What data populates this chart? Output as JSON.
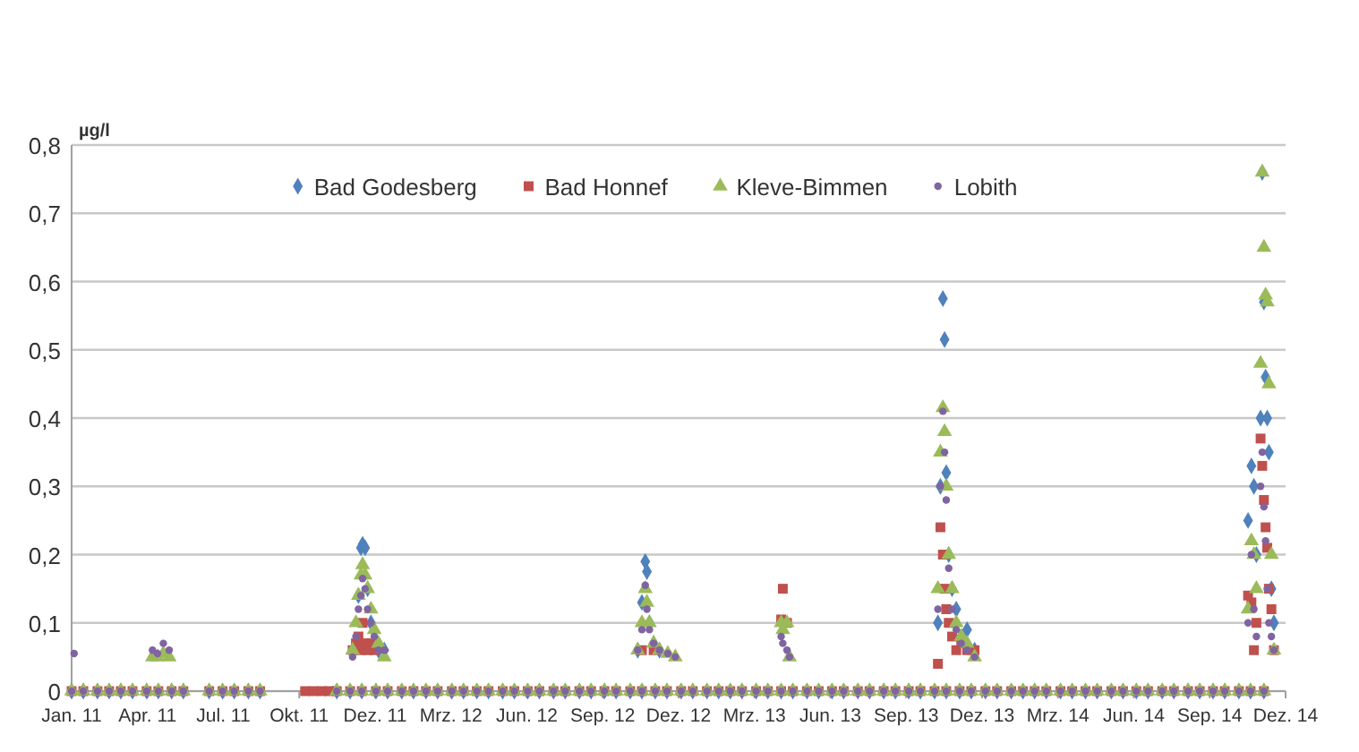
{
  "chart_data": {
    "type": "scatter",
    "ylabel": "µg/l",
    "legend": "top",
    "grid": "y",
    "xlim": [
      "2011-01-01",
      "2014-12-27"
    ],
    "xticks": [
      {
        "value": "2011-01-01",
        "label": "Jan. 11"
      },
      {
        "value": "2011-04-02",
        "label": "Apr. 11"
      },
      {
        "value": "2011-07-02",
        "label": "Jul. 11"
      },
      {
        "value": "2011-10-01",
        "label": "Okt. 11"
      },
      {
        "value": "2011-12-31",
        "label": "Dez. 11"
      },
      {
        "value": "2012-03-31",
        "label": "Mrz. 12"
      },
      {
        "value": "2012-06-30",
        "label": "Jun. 12"
      },
      {
        "value": "2012-09-29",
        "label": "Sep. 12"
      },
      {
        "value": "2012-12-29",
        "label": "Dez. 12"
      },
      {
        "value": "2013-03-30",
        "label": "Mrz. 13"
      },
      {
        "value": "2013-06-29",
        "label": "Jun. 13"
      },
      {
        "value": "2013-09-28",
        "label": "Sep. 13"
      },
      {
        "value": "2013-12-28",
        "label": "Dez. 13"
      },
      {
        "value": "2014-03-29",
        "label": "Mrz. 14"
      },
      {
        "value": "2014-06-28",
        "label": "Jun. 14"
      },
      {
        "value": "2014-09-27",
        "label": "Sep. 14"
      },
      {
        "value": "2014-12-27",
        "label": "Dez. 14"
      }
    ],
    "ylim": [
      0,
      0.8
    ],
    "yticks": [
      0,
      {
        "value": 0.1,
        "label": "0,1"
      },
      {
        "value": 0.2,
        "label": "0,2"
      },
      {
        "value": 0.3,
        "label": "0,3"
      },
      {
        "value": 0.4,
        "label": "0,4"
      },
      {
        "value": 0.5,
        "label": "0,5"
      },
      {
        "value": 0.6,
        "label": "0,6"
      },
      {
        "value": 0.7,
        "label": "0,7"
      },
      {
        "value": 0.8,
        "label": "0,8"
      }
    ],
    "x": [
      "2011-01-01",
      "2011-01-15",
      "2011-02-01",
      "2011-02-15",
      "2011-03-01",
      "2011-03-15",
      "2011-04-01",
      "2011-04-15",
      "2011-05-01",
      "2011-05-15",
      "2011-06-15",
      "2011-07-01",
      "2011-07-15",
      "2011-08-01",
      "2011-08-15",
      "2011-10-08",
      "2011-10-18",
      "2011-10-28",
      "2011-11-06",
      "2011-11-15",
      "2011-12-01",
      "2011-12-15",
      "2012-01-01",
      "2012-01-15",
      "2012-02-01",
      "2012-02-15",
      "2012-03-01",
      "2012-03-15",
      "2012-04-01",
      "2012-04-15",
      "2012-05-01",
      "2012-05-15",
      "2012-06-01",
      "2012-06-15",
      "2012-07-01",
      "2012-07-15",
      "2012-08-01",
      "2012-08-15",
      "2012-09-01",
      "2012-09-15",
      "2012-10-01",
      "2012-10-15",
      "2012-11-01",
      "2012-11-15",
      "2012-12-01",
      "2012-12-15",
      "2013-01-01",
      "2013-01-15",
      "2013-02-01",
      "2013-02-15",
      "2013-03-01",
      "2013-03-15",
      "2013-04-01",
      "2013-04-15",
      "2013-05-01",
      "2013-05-15",
      "2013-06-01",
      "2013-06-15",
      "2013-07-01",
      "2013-07-15",
      "2013-08-01",
      "2013-08-15",
      "2013-09-01",
      "2013-09-15",
      "2013-10-01",
      "2013-10-15",
      "2013-11-01",
      "2013-11-15",
      "2013-12-01",
      "2013-12-15",
      "2014-01-01",
      "2014-01-15",
      "2014-02-01",
      "2014-02-15",
      "2014-03-01",
      "2014-03-15",
      "2014-04-01",
      "2014-04-15",
      "2014-05-01",
      "2014-05-15",
      "2014-06-01",
      "2014-06-15",
      "2014-07-01",
      "2014-07-15",
      "2014-08-01",
      "2014-08-15",
      "2014-09-01",
      "2014-09-15",
      "2014-10-01",
      "2014-10-15",
      "2014-11-01",
      "2014-11-15",
      "2014-12-01",
      "2011-01-04",
      "2011-04-08",
      "2011-04-14",
      "2011-04-21",
      "2011-04-28",
      "2011-12-04",
      "2011-12-08",
      "2011-12-11",
      "2011-12-14",
      "2011-12-16",
      "2011-12-19",
      "2011-12-22",
      "2011-12-26",
      "2011-12-30",
      "2012-01-04",
      "2012-01-11",
      "2012-11-10",
      "2012-11-15",
      "2012-11-19",
      "2012-11-21",
      "2012-11-24",
      "2012-11-29",
      "2012-12-06",
      "2012-12-16",
      "2012-12-25",
      "2013-05-01",
      "2013-05-03",
      "2013-05-08",
      "2013-05-11",
      "2013-11-05",
      "2013-11-08",
      "2013-11-11",
      "2013-11-13",
      "2013-11-15",
      "2013-11-18",
      "2013-11-22",
      "2013-11-27",
      "2013-12-03",
      "2013-12-10",
      "2013-12-19",
      "2014-11-12",
      "2014-11-16",
      "2014-11-19",
      "2014-11-22",
      "2014-11-27",
      "2014-11-29",
      "2014-12-01",
      "2014-12-03",
      "2014-12-05",
      "2014-12-07",
      "2014-12-10",
      "2014-12-13"
    ],
    "series": [
      {
        "name": "Bad Godesberg",
        "color": "#4f81bd",
        "marker": "diamond",
        "values": [
          0,
          0,
          0,
          0,
          0,
          0,
          0,
          0,
          0,
          0,
          0,
          0,
          0,
          0,
          0,
          null,
          null,
          null,
          null,
          0,
          0,
          0,
          0,
          0,
          0,
          0,
          0,
          0,
          0,
          0,
          0,
          0,
          0,
          0,
          0,
          0,
          0,
          0,
          0,
          0,
          0,
          0,
          0,
          0,
          0,
          0,
          0,
          0,
          0,
          0,
          0,
          0,
          0,
          0,
          0,
          0,
          0,
          0,
          0,
          0,
          0,
          0,
          0,
          0,
          0,
          0,
          0,
          0,
          0,
          0,
          0,
          0,
          0,
          0,
          0,
          0,
          0,
          0,
          0,
          0,
          0,
          0,
          0,
          0,
          0,
          0,
          0,
          0,
          0,
          0,
          0,
          0,
          0,
          null,
          null,
          null,
          null,
          null,
          null,
          null,
          0.14,
          0.21,
          0.215,
          0.21,
          0.15,
          0.1,
          null,
          0.06,
          0.06,
          0.06,
          0.13,
          0.19,
          0.175,
          0.1,
          0.07,
          0.06,
          null,
          null,
          null,
          null,
          null,
          null,
          0.1,
          0.3,
          0.575,
          0.515,
          0.32,
          0.2,
          0.15,
          0.12,
          0.08,
          0.09,
          0.06,
          0.25,
          0.33,
          0.3,
          0.2,
          0.4,
          0.76,
          0.57,
          0.46,
          0.4,
          0.35,
          0.15,
          0.1
        ]
      },
      {
        "name": "Bad Honnef",
        "color": "#c0504d",
        "marker": "square",
        "values": [
          0,
          0,
          0,
          0,
          0,
          0,
          0,
          0,
          0,
          0,
          0,
          0,
          0,
          0,
          0,
          0,
          0,
          0,
          0,
          0,
          0,
          0,
          0,
          0,
          0,
          0,
          0,
          0,
          0,
          0,
          0,
          0,
          0,
          0,
          0,
          0,
          0,
          0,
          0,
          0,
          0,
          0,
          0,
          0,
          0,
          0,
          0,
          0,
          0,
          0,
          0,
          0,
          0,
          0,
          0,
          0,
          0,
          0,
          0,
          0,
          0,
          0,
          0,
          0,
          0,
          0,
          0,
          0,
          0,
          0,
          0,
          0,
          0,
          0,
          0,
          0,
          0,
          0,
          0,
          0,
          0,
          0,
          0,
          0,
          0,
          0,
          0,
          0,
          0,
          0,
          0,
          0,
          0,
          null,
          null,
          null,
          null,
          null,
          0.06,
          0.07,
          0.08,
          0.06,
          0.1,
          0.07,
          0.06,
          0.07,
          0.06,
          null,
          null,
          null,
          0.06,
          null,
          null,
          null,
          0.06,
          null,
          null,
          null,
          0.105,
          0.15,
          0.1,
          null,
          0.04,
          0.24,
          0.2,
          0.15,
          0.12,
          0.1,
          0.08,
          0.06,
          0.07,
          0.06,
          0.06,
          0.14,
          0.13,
          0.06,
          0.1,
          0.37,
          0.33,
          0.28,
          0.24,
          0.21,
          0.15,
          0.12,
          0.06
        ]
      },
      {
        "name": "Kleve-Bimmen",
        "color": "#9bbb59",
        "marker": "triangle",
        "values": [
          0,
          0,
          0,
          0,
          0,
          0,
          0,
          0,
          0,
          0,
          0,
          0,
          0,
          0,
          0,
          null,
          null,
          null,
          null,
          0,
          0,
          0,
          0,
          0,
          0,
          0,
          0,
          0,
          0,
          0,
          0,
          0,
          0,
          0,
          0,
          0,
          0,
          0,
          0,
          0,
          0,
          0,
          0,
          0,
          0,
          0,
          0,
          0,
          0,
          0,
          0,
          0,
          0,
          0,
          0,
          0,
          0,
          0,
          0,
          0,
          0,
          0,
          0,
          0,
          0,
          0,
          0,
          0,
          0,
          0,
          0,
          0,
          0,
          0,
          0,
          0,
          0,
          0,
          0,
          0,
          0,
          0,
          0,
          0,
          0,
          0,
          0,
          0,
          0,
          0,
          0,
          0,
          0,
          null,
          0.05,
          0.05,
          0.055,
          0.05,
          0.06,
          0.1,
          0.14,
          0.17,
          0.185,
          0.17,
          0.15,
          0.12,
          0.09,
          0.07,
          0.05,
          0.06,
          0.1,
          0.15,
          0.13,
          0.1,
          0.07,
          0.06,
          0.055,
          0.05,
          0.1,
          0.09,
          0.1,
          0.05,
          0.15,
          0.35,
          0.415,
          0.38,
          0.3,
          0.2,
          0.15,
          0.1,
          0.08,
          0.07,
          0.05,
          0.12,
          0.22,
          0.2,
          0.15,
          0.48,
          0.76,
          0.65,
          0.58,
          0.57,
          0.45,
          0.2,
          0.06
        ]
      },
      {
        "name": "Lobith",
        "color": "#8064a2",
        "marker": "circle",
        "values": [
          0,
          0,
          0,
          0,
          0,
          0,
          0,
          0,
          0,
          0,
          0,
          0,
          0,
          0,
          0,
          null,
          null,
          null,
          null,
          0,
          0,
          0,
          0,
          0,
          0,
          0,
          0,
          0,
          0,
          0,
          0,
          0,
          0,
          0,
          0,
          0,
          0,
          0,
          0,
          0,
          0,
          0,
          0,
          0,
          0,
          0,
          0,
          0,
          0,
          0,
          0,
          0,
          0,
          0,
          0,
          0,
          0,
          0,
          0,
          0,
          0,
          0,
          0,
          0,
          0,
          0,
          0,
          0,
          0,
          0,
          0,
          0,
          0,
          0,
          0,
          0,
          0,
          0,
          0,
          0,
          0,
          0,
          0,
          0,
          0,
          0,
          0,
          0,
          0,
          0,
          0,
          0,
          0,
          0.055,
          0.06,
          0.055,
          0.07,
          0.06,
          0.05,
          0.08,
          0.12,
          0.14,
          0.165,
          0.15,
          0.12,
          0.1,
          0.08,
          0.06,
          0.06,
          0.06,
          0.09,
          0.155,
          0.12,
          0.09,
          0.07,
          0.06,
          0.055,
          0.05,
          0.08,
          0.07,
          0.06,
          0.05,
          0.12,
          0.3,
          0.41,
          0.35,
          0.28,
          0.18,
          0.12,
          0.09,
          0.07,
          0.06,
          0.05,
          0.1,
          0.2,
          0.12,
          0.08,
          0.3,
          0.35,
          0.27,
          0.22,
          0.15,
          0.1,
          0.08,
          0.06
        ]
      }
    ]
  }
}
